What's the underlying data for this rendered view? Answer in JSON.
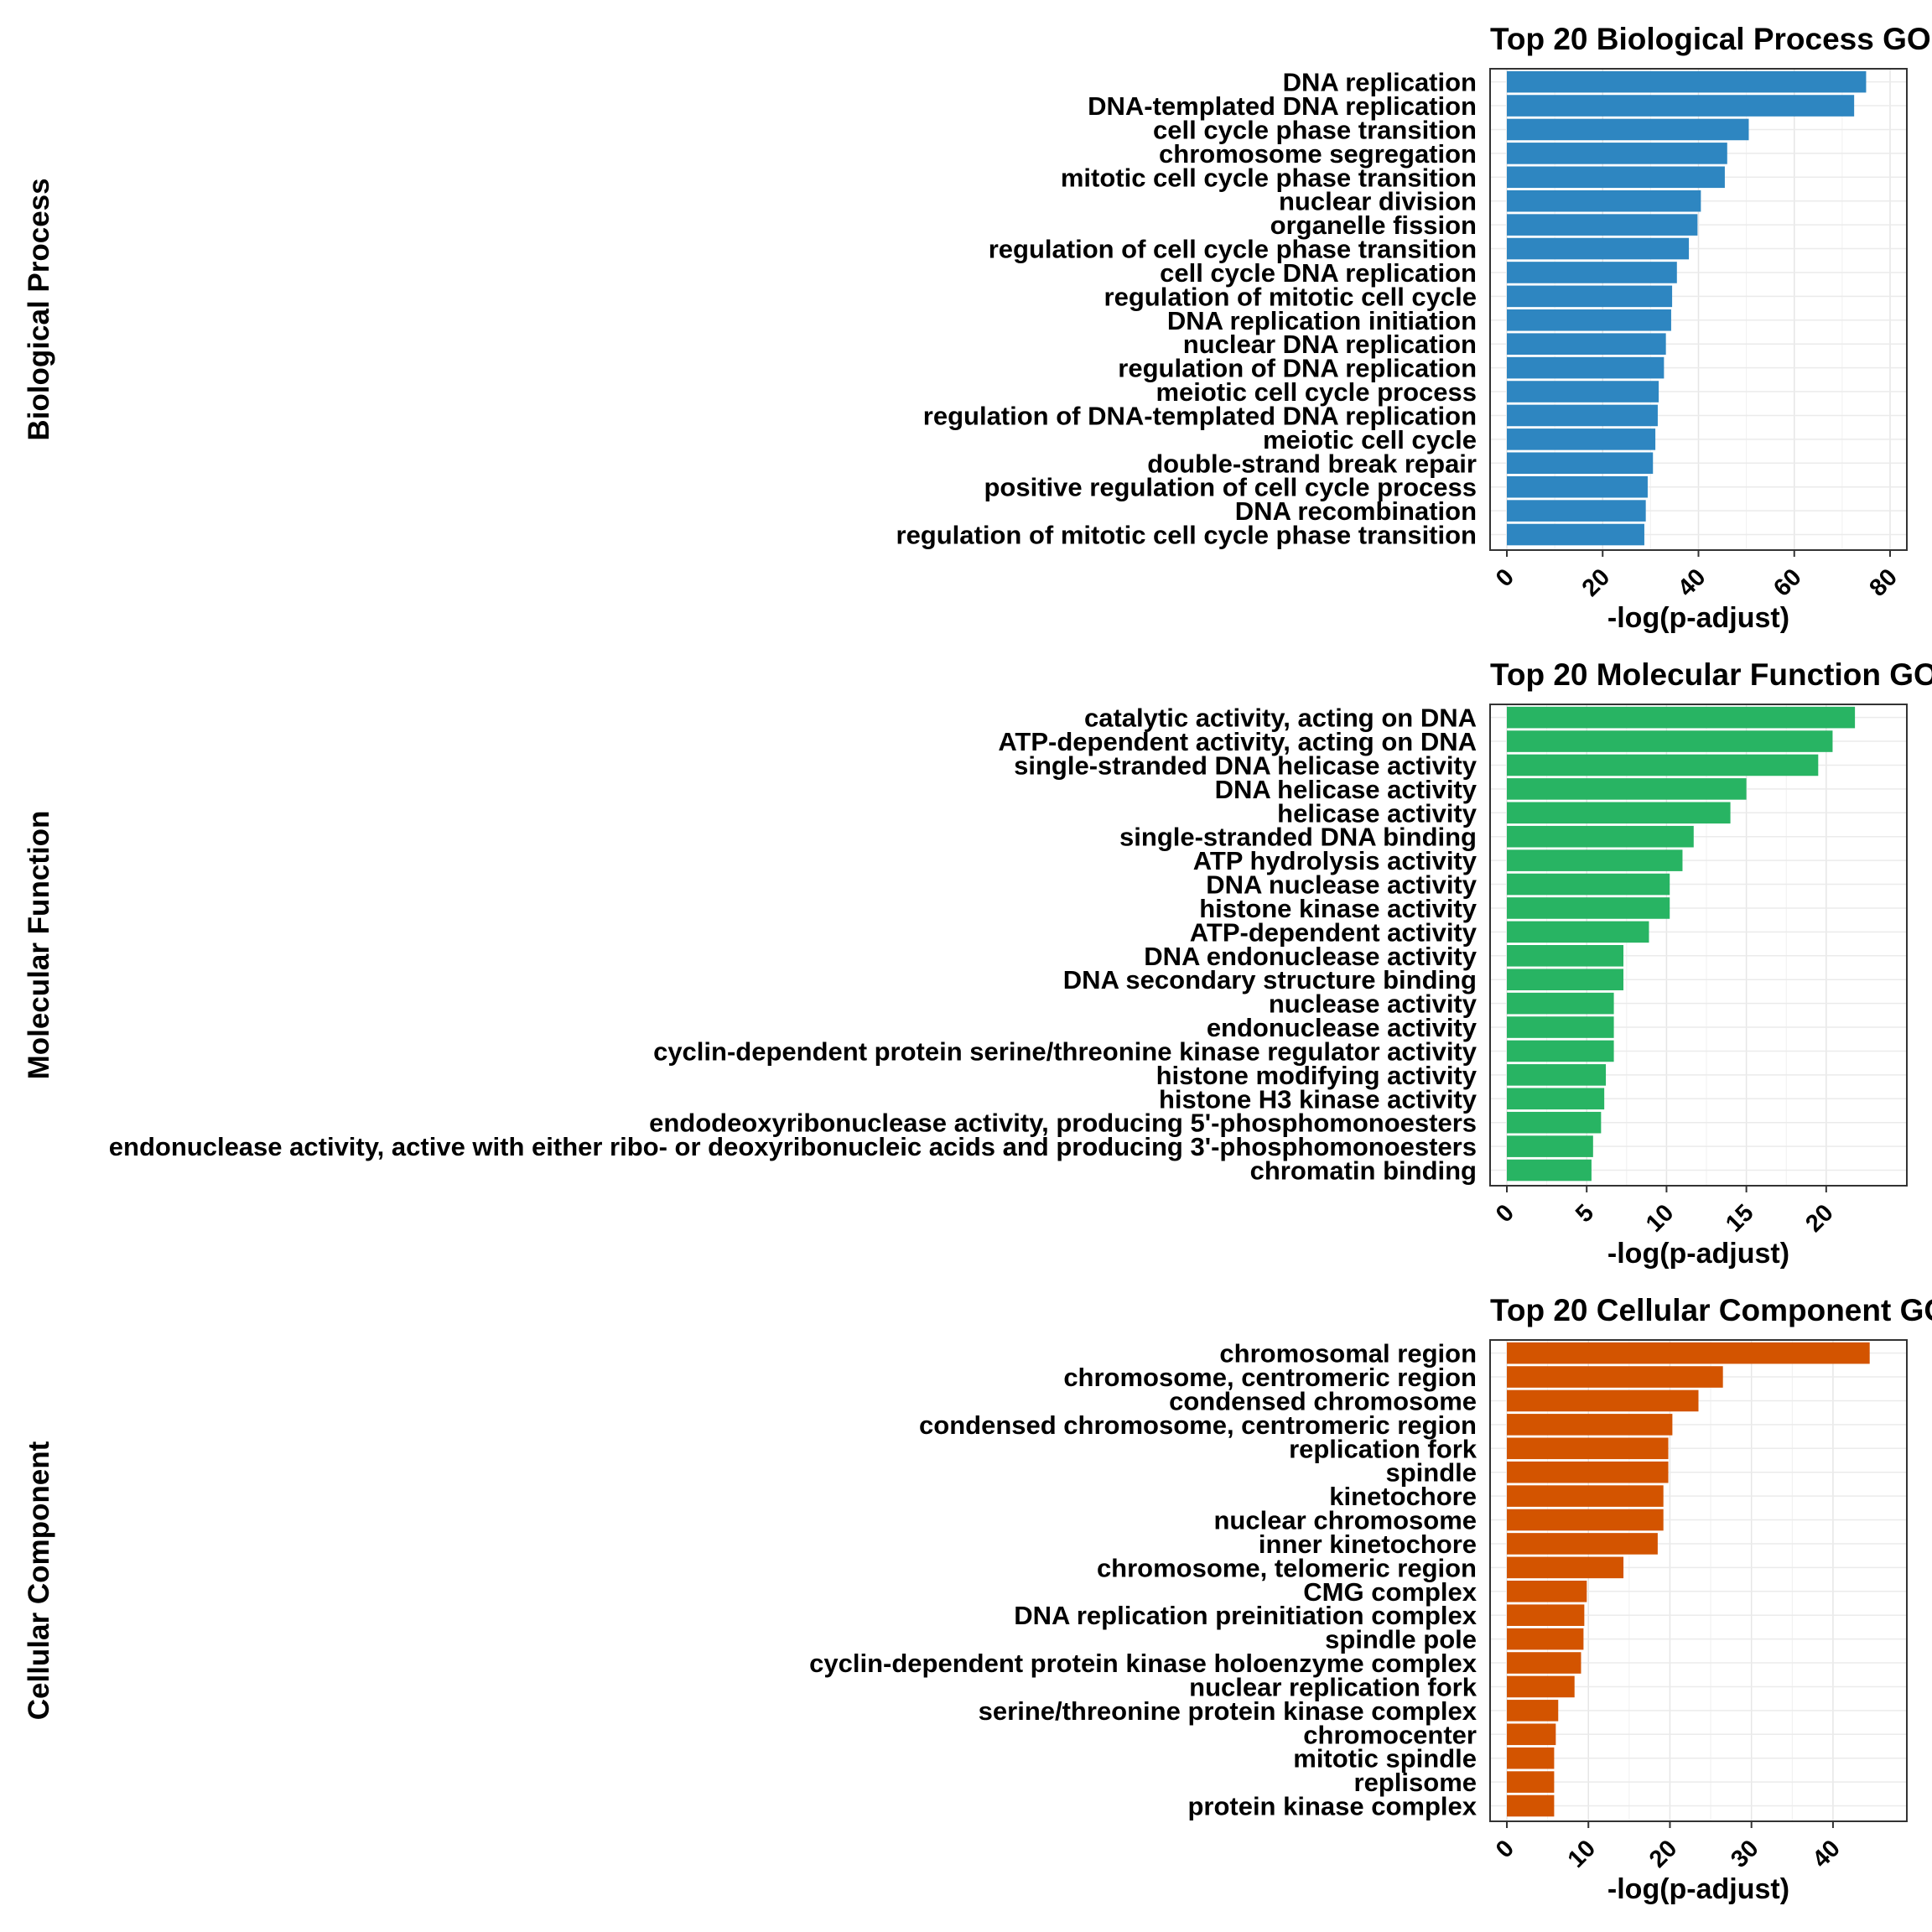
{
  "chart_data": [
    {
      "type": "bar",
      "orientation": "horizontal",
      "row_label": "Biological Process",
      "title": "Top 20 Biological Process GO",
      "xlabel": "-log(p-adjust)",
      "ylabel": "",
      "color": "#2e86c1",
      "xlim": [
        0,
        80
      ],
      "xticks": [
        0,
        20,
        40,
        60,
        80
      ],
      "grid": true,
      "categories": [
        "DNA replication",
        "DNA-templated DNA replication",
        "cell cycle phase transition",
        "chromosome segregation",
        "mitotic cell cycle phase transition",
        "nuclear division",
        "organelle fission",
        "regulation of cell cycle phase transition",
        "cell cycle DNA replication",
        "regulation of mitotic cell cycle",
        "DNA replication initiation",
        "nuclear DNA replication",
        "regulation of DNA replication",
        "meiotic cell cycle process",
        "regulation of DNA-templated DNA replication",
        "meiotic cell cycle",
        "double-strand break repair",
        "positive regulation of cell cycle process",
        "DNA recombination",
        "regulation of mitotic cell cycle phase transition"
      ],
      "values": [
        75.0,
        72.5,
        50.5,
        46.0,
        45.5,
        40.5,
        39.8,
        38.0,
        35.5,
        34.5,
        34.3,
        33.2,
        32.8,
        31.7,
        31.5,
        31.0,
        30.5,
        29.4,
        29.0,
        28.7
      ]
    },
    {
      "type": "bar",
      "orientation": "horizontal",
      "row_label": "Molecular Function",
      "title": "Top 20 Molecular Function GO",
      "xlabel": "-log(p-adjust)",
      "ylabel": "",
      "color": "#28b463",
      "xlim": [
        0,
        24
      ],
      "xticks": [
        0,
        5,
        10,
        15,
        20
      ],
      "grid": true,
      "categories": [
        "catalytic activity, acting on DNA",
        "ATP-dependent activity, acting on DNA",
        "single-stranded DNA helicase activity",
        "DNA helicase activity",
        "helicase activity",
        "single-stranded DNA binding",
        "ATP hydrolysis activity",
        "DNA nuclease activity",
        "histone kinase activity",
        "ATP-dependent activity",
        "DNA endonuclease activity",
        "DNA secondary structure binding",
        "nuclease activity",
        "endonuclease activity",
        "cyclin-dependent protein serine/threonine kinase regulator activity",
        "histone modifying activity",
        "histone H3 kinase activity",
        "endodeoxyribonuclease activity, producing 5'-phosphomonoesters",
        "endonuclease activity, active with either ribo- or deoxyribonucleic acids and producing 3'-phosphomonoesters",
        "chromatin binding"
      ],
      "values": [
        21.8,
        20.4,
        19.5,
        15.0,
        14.0,
        11.7,
        11.0,
        10.2,
        10.2,
        8.9,
        7.3,
        7.3,
        6.7,
        6.7,
        6.7,
        6.2,
        6.1,
        5.9,
        5.4,
        5.3
      ]
    },
    {
      "type": "bar",
      "orientation": "horizontal",
      "row_label": "Cellular Component",
      "title": "Top 20 Cellular Component GO",
      "xlabel": "-log(p-adjust)",
      "ylabel": "",
      "color": "#d35400",
      "xlim": [
        0,
        47
      ],
      "xticks": [
        0,
        10,
        20,
        30,
        40
      ],
      "grid": true,
      "categories": [
        "chromosomal region",
        "chromosome, centromeric region",
        "condensed chromosome",
        "condensed chromosome, centromeric region",
        "replication fork",
        "spindle",
        "kinetochore",
        "nuclear chromosome",
        "inner kinetochore",
        "chromosome, telomeric region",
        "CMG complex",
        "DNA replication preinitiation complex",
        "spindle pole",
        "cyclin-dependent protein kinase holoenzyme complex",
        "nuclear replication fork",
        "serine/threonine protein kinase complex",
        "chromocenter",
        "mitotic spindle",
        "replisome",
        "protein kinase complex"
      ],
      "values": [
        44.5,
        26.5,
        23.5,
        20.3,
        19.8,
        19.8,
        19.2,
        19.2,
        18.5,
        14.3,
        9.8,
        9.5,
        9.4,
        9.1,
        8.3,
        6.3,
        6.0,
        5.8,
        5.8,
        5.8
      ]
    }
  ]
}
